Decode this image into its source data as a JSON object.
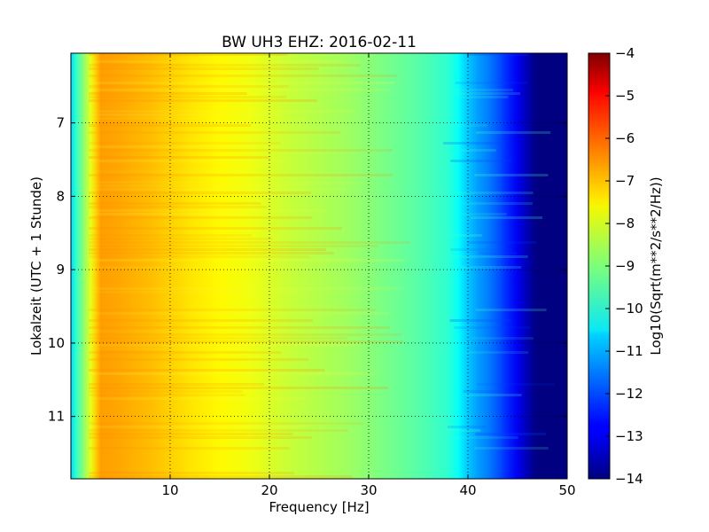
{
  "chart_data": {
    "type": "heatmap",
    "title": "BW UH3 EHZ: 2016-02-11",
    "xlabel": "Frequency [Hz]",
    "ylabel": "Lokalzeit (UTC + 1 Stunde)",
    "xlim": [
      0,
      50
    ],
    "ylim": [
      6.05,
      11.85
    ],
    "y_inverted": true,
    "x_ticks": [
      10,
      20,
      30,
      40,
      50
    ],
    "y_ticks": [
      7,
      8,
      9,
      10,
      11
    ],
    "grid": true,
    "grid_style": "dotted",
    "colormap": "jet",
    "colorbar": {
      "label": "Log10(Sqrt(m**2/s**2/Hz))",
      "range": [
        -14,
        -4
      ],
      "ticks": [
        -4,
        -5,
        -6,
        -7,
        -8,
        -9,
        -10,
        -11,
        -12,
        -13,
        -14
      ]
    },
    "frequency_profile": {
      "frequency_hz": [
        0,
        0.5,
        1,
        1.5,
        2,
        2.5,
        3,
        5,
        8,
        10,
        12,
        15,
        18,
        20,
        22,
        25,
        28,
        30,
        32,
        35,
        38,
        39,
        40,
        41,
        42,
        43,
        44,
        45,
        46,
        46.5,
        47,
        48,
        50
      ],
      "log10_amplitude": [
        -10.6,
        -9.8,
        -9.2,
        -8.6,
        -8.0,
        -7.3,
        -6.8,
        -6.9,
        -7.1,
        -7.3,
        -7.5,
        -7.7,
        -7.9,
        -8.1,
        -8.3,
        -8.5,
        -8.7,
        -8.9,
        -9.1,
        -9.4,
        -9.8,
        -10.2,
        -10.8,
        -11.2,
        -11.5,
        -11.9,
        -12.4,
        -12.9,
        -13.5,
        -13.8,
        -14.0,
        -14.0,
        -14.0
      ]
    }
  }
}
